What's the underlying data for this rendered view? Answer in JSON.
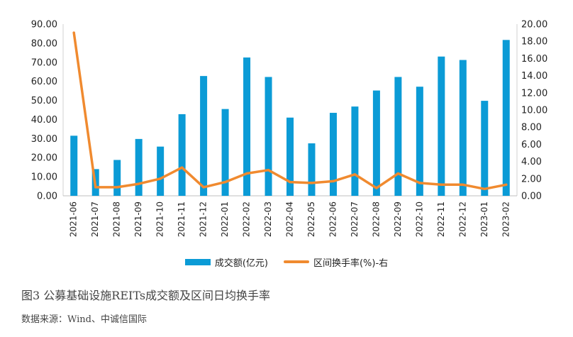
{
  "chart_data": {
    "type": "bar",
    "categories": [
      "2021-06",
      "2021-07",
      "2021-08",
      "2021-09",
      "2021-10",
      "2021-11",
      "2021-12",
      "2022-01",
      "2022-02",
      "2022-03",
      "2022-04",
      "2022-05",
      "2022-06",
      "2022-07",
      "2022-08",
      "2022-09",
      "2022-10",
      "2022-11",
      "2022-12",
      "2023-01",
      "2023-02"
    ],
    "series": [
      {
        "name": "成交额(亿元)",
        "type": "bar",
        "axis": "left",
        "color": "#0b9bd6",
        "values": [
          31.5,
          14.0,
          18.8,
          29.8,
          25.8,
          42.8,
          62.8,
          45.5,
          72.5,
          62.3,
          41.0,
          27.5,
          43.5,
          46.8,
          55.2,
          62.3,
          57.2,
          73.0,
          71.2,
          49.8,
          81.7
        ]
      },
      {
        "name": "区间换手率(%)-右",
        "type": "line",
        "axis": "right",
        "color": "#f08a2f",
        "values": [
          19.0,
          1.0,
          1.0,
          1.4,
          2.0,
          3.3,
          1.0,
          1.6,
          2.6,
          3.0,
          1.6,
          1.5,
          1.7,
          2.5,
          0.9,
          2.6,
          1.5,
          1.3,
          1.3,
          0.8,
          1.3
        ]
      }
    ],
    "y_left": {
      "ylim": [
        0,
        90
      ],
      "ticks": [
        "0.00",
        "10.00",
        "20.00",
        "30.00",
        "40.00",
        "50.00",
        "60.00",
        "70.00",
        "80.00",
        "90.00"
      ]
    },
    "y_right": {
      "ylim": [
        0,
        20
      ],
      "ticks": [
        "0.00",
        "2.00",
        "4.00",
        "6.00",
        "8.00",
        "10.00",
        "12.00",
        "14.00",
        "16.00",
        "18.00",
        "20.00"
      ]
    },
    "grid": false,
    "legend_position": "bottom"
  },
  "caption": "图3 公募基础设施REITs成交额及区间日均换手率",
  "source": "数据来源：Wind、中诚信国际"
}
